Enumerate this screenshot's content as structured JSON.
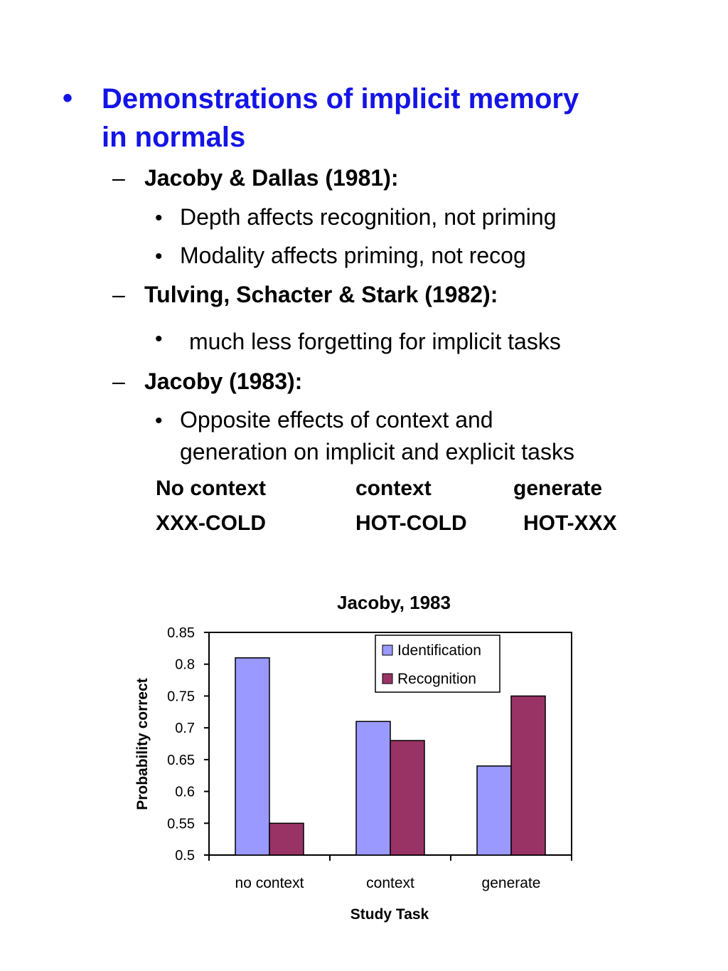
{
  "slide": {
    "bullet": "•",
    "title_line1": "Demonstrations of implicit memory",
    "title_line2": "in normals",
    "dash": "–",
    "sub_bullet": "•",
    "sections": [
      {
        "heading": "Jacoby & Dallas (1981):",
        "items": [
          "Depth affects recognition, not priming",
          "Modality affects priming, not recog"
        ]
      },
      {
        "heading": "Tulving, Schacter & Stark (1982):",
        "items": [
          "much less forgetting for implicit tasks"
        ]
      },
      {
        "heading": "Jacoby (1983):",
        "items": [
          "Opposite effects of context and",
          "generation on implicit and explicit tasks"
        ]
      }
    ],
    "conditions_table": {
      "headers": [
        "No context",
        "context",
        "generate"
      ],
      "examples": [
        "XXX-COLD",
        "HOT-COLD",
        "HOT-XXX"
      ]
    }
  },
  "chart_data": {
    "type": "bar",
    "title": "Jacoby, 1983",
    "xlabel": "Study Task",
    "ylabel": "Probability correct",
    "categories": [
      "no context",
      "context",
      "generate"
    ],
    "series": [
      {
        "name": "Identification",
        "values": [
          0.81,
          0.71,
          0.64
        ],
        "color": "#9999ff"
      },
      {
        "name": "Recognition",
        "values": [
          0.55,
          0.68,
          0.75
        ],
        "color": "#993366"
      }
    ],
    "ylim": [
      0.5,
      0.85
    ],
    "yticks": [
      "0.5",
      "0.55",
      "0.6",
      "0.65",
      "0.7",
      "0.75",
      "0.8",
      "0.85"
    ],
    "legend_position": "top-right",
    "grid": false
  }
}
